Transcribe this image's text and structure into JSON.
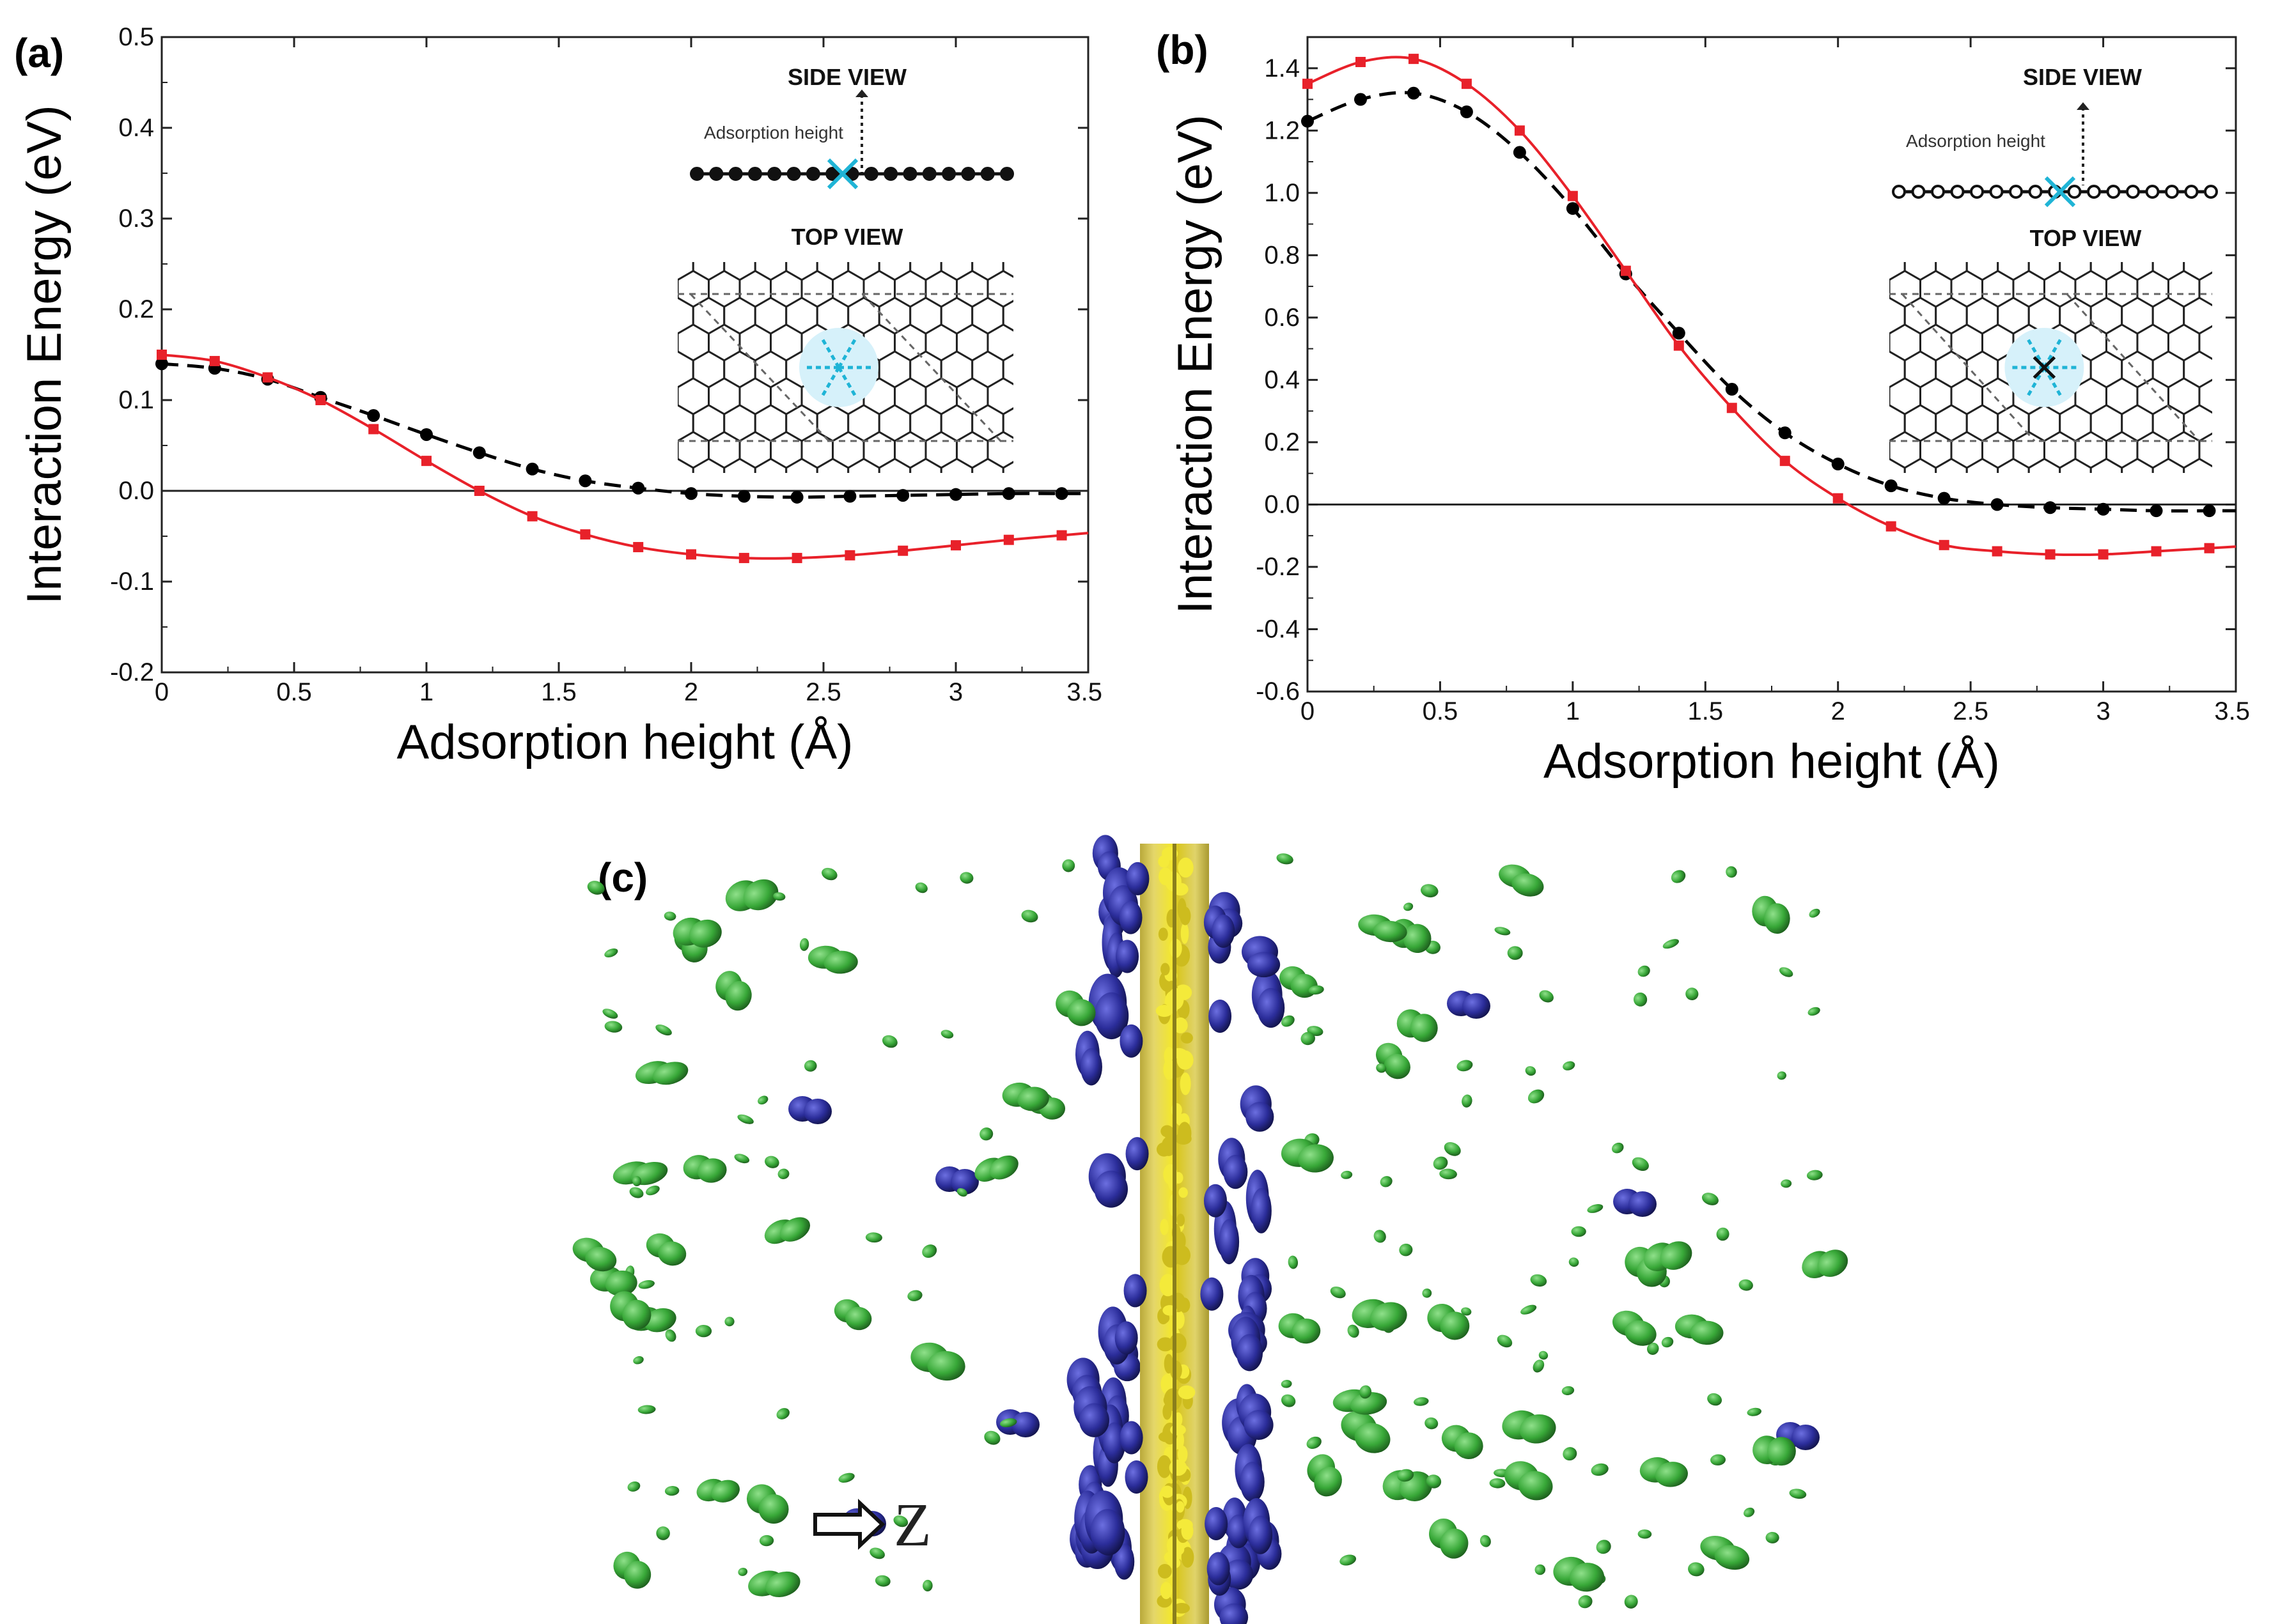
{
  "chart_data": [
    {
      "panel": "(a)",
      "type": "line",
      "xlabel": "Adsorption height (Å)",
      "ylabel": "Interaction Energy (eV)",
      "xlim": [
        0,
        3.5
      ],
      "ylim": [
        -0.2,
        0.5
      ],
      "xticks": [
        "0",
        "0.5",
        "1",
        "1.5",
        "2",
        "2.5",
        "3",
        "3.5"
      ],
      "yticks": [
        "-0.2",
        "-0.1",
        "0.0",
        "0.1",
        "0.2",
        "0.3",
        "0.4",
        "0.5"
      ],
      "ytick_values": [
        -0.2,
        -0.1,
        0.0,
        0.1,
        0.2,
        0.3,
        0.4,
        0.5
      ],
      "xtick_values": [
        0,
        0.5,
        1,
        1.5,
        2,
        2.5,
        3,
        3.5
      ],
      "x": [
        0,
        0.2,
        0.4,
        0.6,
        0.8,
        1.0,
        1.2,
        1.4,
        1.6,
        1.8,
        2.0,
        2.2,
        2.4,
        2.6,
        2.8,
        3.0,
        3.2,
        3.4
      ],
      "series": [
        {
          "name": "black dashed",
          "color": "#000000",
          "style": "dashed",
          "values": [
            0.14,
            0.135,
            0.123,
            0.103,
            0.083,
            0.062,
            0.042,
            0.024,
            0.011,
            0.003,
            -0.003,
            -0.006,
            -0.007,
            -0.006,
            -0.005,
            -0.004,
            -0.003,
            -0.003
          ]
        },
        {
          "name": "red solid",
          "color": "#e8212a",
          "style": "solid",
          "values": [
            0.15,
            0.143,
            0.125,
            0.1,
            0.068,
            0.033,
            0.0,
            -0.028,
            -0.048,
            -0.062,
            -0.07,
            -0.074,
            -0.074,
            -0.071,
            -0.066,
            -0.06,
            -0.054,
            -0.049
          ]
        }
      ],
      "inset": {
        "side_view": "SIDE VIEW",
        "top_view": "TOP VIEW",
        "height_label": "Adsorption height"
      }
    },
    {
      "panel": "(b)",
      "type": "line",
      "xlabel": "Adsorption height (Å)",
      "ylabel": "Interaction Energy (eV)",
      "xlim": [
        0,
        3.5
      ],
      "ylim": [
        -0.6,
        1.5
      ],
      "xticks": [
        "0",
        "0.5",
        "1",
        "1.5",
        "2",
        "2.5",
        "3",
        "3.5"
      ],
      "yticks": [
        "-0.6",
        "-0.4",
        "-0.2",
        "0.0",
        "0.2",
        "0.4",
        "0.6",
        "0.8",
        "1.0",
        "1.2",
        "1.4"
      ],
      "ytick_values": [
        -0.6,
        -0.4,
        -0.2,
        0.0,
        0.2,
        0.4,
        0.6,
        0.8,
        1.0,
        1.2,
        1.4
      ],
      "xtick_values": [
        0,
        0.5,
        1,
        1.5,
        2,
        2.5,
        3,
        3.5
      ],
      "x": [
        0,
        0.2,
        0.4,
        0.6,
        0.8,
        1.0,
        1.2,
        1.4,
        1.6,
        1.8,
        2.0,
        2.2,
        2.4,
        2.6,
        2.8,
        3.0,
        3.2,
        3.4
      ],
      "series": [
        {
          "name": "black dashed",
          "color": "#000000",
          "style": "dashed",
          "values": [
            1.23,
            1.3,
            1.32,
            1.26,
            1.13,
            0.95,
            0.74,
            0.55,
            0.37,
            0.23,
            0.13,
            0.06,
            0.02,
            0.0,
            -0.01,
            -0.015,
            -0.02,
            -0.02
          ]
        },
        {
          "name": "red solid",
          "color": "#e8212a",
          "style": "solid",
          "values": [
            1.35,
            1.42,
            1.43,
            1.35,
            1.2,
            0.99,
            0.75,
            0.51,
            0.31,
            0.14,
            0.02,
            -0.07,
            -0.13,
            -0.15,
            -0.16,
            -0.16,
            -0.15,
            -0.14
          ]
        }
      ],
      "inset": {
        "side_view": "SIDE VIEW",
        "top_view": "TOP VIEW",
        "height_label": "Adsorption height"
      }
    }
  ],
  "panel_c": {
    "label": "(c)",
    "axis_label": "Z"
  },
  "colors": {
    "red": "#e8212a",
    "black": "#000000",
    "cyan": "#1fb4d6",
    "blue": "#2d2f9c",
    "green": "#3fae3f",
    "yellow": "#e8da22"
  }
}
